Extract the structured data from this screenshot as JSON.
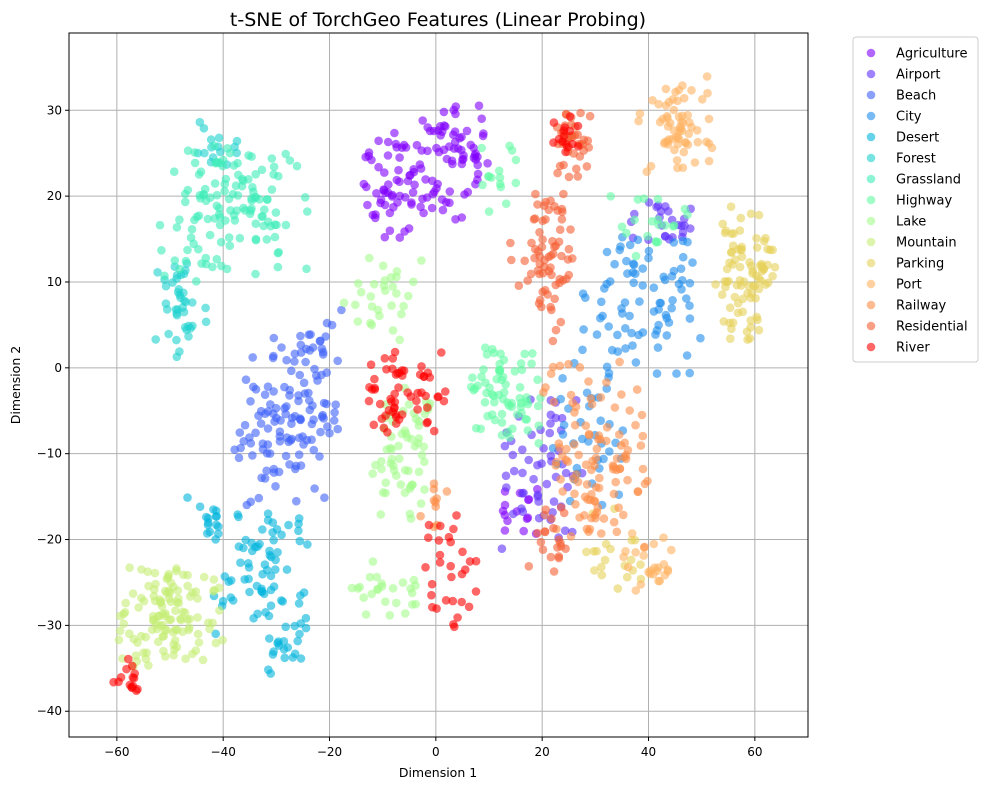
{
  "chart_data": {
    "type": "scatter",
    "title": "t-SNE of TorchGeo Features (Linear Probing)",
    "xlabel": "Dimension 1",
    "ylabel": "Dimension 2",
    "xlim": [
      -69,
      70
    ],
    "ylim": [
      -43,
      39
    ],
    "xticks": [
      -60,
      -40,
      -20,
      0,
      20,
      40,
      60
    ],
    "yticks": [
      -40,
      -30,
      -20,
      -10,
      0,
      10,
      20,
      30
    ],
    "xtick_labels": [
      "−60",
      "−40",
      "−20",
      "0",
      "20",
      "40",
      "60"
    ],
    "ytick_labels": [
      "−40",
      "−30",
      "−20",
      "−10",
      "0",
      "10",
      "20",
      "30"
    ],
    "grid": true,
    "legend_position": "outside-top-right",
    "marker_alpha": 0.6,
    "series": [
      {
        "name": "Agriculture",
        "color": "#8000ff",
        "clusters": [
          {
            "cx": -6,
            "cy": 22,
            "rx": 8,
            "ry": 7,
            "n": 75
          },
          {
            "cx": 4,
            "cy": 24,
            "rx": 6,
            "ry": 7,
            "n": 55
          },
          {
            "cx": 16,
            "cy": -17,
            "rx": 5,
            "ry": 4,
            "n": 15
          }
        ]
      },
      {
        "name": "Airport",
        "color": "#5f30fe",
        "clusters": [
          {
            "cx": 20,
            "cy": -12,
            "rx": 8,
            "ry": 10,
            "n": 55
          },
          {
            "cx": 42,
            "cy": 17,
            "rx": 10,
            "ry": 4,
            "n": 25
          }
        ]
      },
      {
        "name": "Beach",
        "color": "#3e60f8",
        "clusters": [
          {
            "cx": -28,
            "cy": -6,
            "rx": 10,
            "ry": 10,
            "n": 120
          },
          {
            "cx": -21,
            "cy": 4,
            "rx": 4,
            "ry": 4,
            "n": 15
          }
        ]
      },
      {
        "name": "City",
        "color": "#1e8ceb",
        "clusters": [
          {
            "cx": 38,
            "cy": 7,
            "rx": 12,
            "ry": 9,
            "n": 85
          },
          {
            "cx": 30,
            "cy": -8,
            "rx": 8,
            "ry": 8,
            "n": 35
          }
        ]
      },
      {
        "name": "Desert",
        "color": "#00b4dc",
        "clusters": [
          {
            "cx": -33,
            "cy": -24,
            "rx": 9,
            "ry": 8,
            "n": 70
          },
          {
            "cx": -29,
            "cy": -33,
            "rx": 4,
            "ry": 4,
            "n": 20
          },
          {
            "cx": -43,
            "cy": -17,
            "rx": 4,
            "ry": 3,
            "n": 15
          }
        ]
      },
      {
        "name": "Forest",
        "color": "#1ed2ce",
        "clusters": [
          {
            "cx": -48,
            "cy": 7,
            "rx": 5,
            "ry": 7,
            "n": 40
          },
          {
            "cx": -40,
            "cy": 26,
            "rx": 5,
            "ry": 3,
            "n": 15
          }
        ]
      },
      {
        "name": "Grassland",
        "color": "#3eecb9",
        "clusters": [
          {
            "cx": -38,
            "cy": 18,
            "rx": 14,
            "ry": 8,
            "n": 130
          }
        ]
      },
      {
        "name": "Highway",
        "color": "#61fba4",
        "clusters": [
          {
            "cx": 13,
            "cy": -3,
            "rx": 7,
            "ry": 6,
            "n": 70
          },
          {
            "cx": 12,
            "cy": 22,
            "rx": 4,
            "ry": 4,
            "n": 15
          },
          {
            "cx": 40,
            "cy": 17,
            "rx": 8,
            "ry": 5,
            "n": 20
          }
        ]
      },
      {
        "name": "Lake",
        "color": "#a4fb8c",
        "clusters": [
          {
            "cx": -6,
            "cy": -10,
            "rx": 7,
            "ry": 8,
            "n": 60
          },
          {
            "cx": -10,
            "cy": -26,
            "rx": 7,
            "ry": 4,
            "n": 25
          },
          {
            "cx": -10,
            "cy": 8,
            "rx": 8,
            "ry": 5,
            "n": 30
          }
        ]
      },
      {
        "name": "Mountain",
        "color": "#c4ec73",
        "clusters": [
          {
            "cx": -50,
            "cy": -29,
            "rx": 10,
            "ry": 6,
            "n": 120
          }
        ]
      },
      {
        "name": "Parking",
        "color": "#e6d158",
        "clusters": [
          {
            "cx": 58,
            "cy": 11,
            "rx": 6,
            "ry": 8,
            "n": 85
          },
          {
            "cx": 33,
            "cy": -21,
            "rx": 6,
            "ry": 5,
            "n": 20
          }
        ]
      },
      {
        "name": "Port",
        "color": "#ffb360",
        "clusters": [
          {
            "cx": 45,
            "cy": 28,
            "rx": 7,
            "ry": 6,
            "n": 65
          },
          {
            "cx": 40,
            "cy": -23,
            "rx": 6,
            "ry": 4,
            "n": 25
          }
        ]
      },
      {
        "name": "Railway",
        "color": "#fe8c46",
        "clusters": [
          {
            "cx": 30,
            "cy": -10,
            "rx": 10,
            "ry": 11,
            "n": 110
          },
          {
            "cx": 0,
            "cy": -16,
            "rx": 3,
            "ry": 3,
            "n": 10
          }
        ]
      },
      {
        "name": "Residential",
        "color": "#f55f33",
        "clusters": [
          {
            "cx": 20,
            "cy": 12,
            "rx": 6,
            "ry": 9,
            "n": 70
          },
          {
            "cx": 26,
            "cy": 26,
            "rx": 4,
            "ry": 4,
            "n": 40
          },
          {
            "cx": 22,
            "cy": -20,
            "rx": 5,
            "ry": 4,
            "n": 20
          }
        ]
      },
      {
        "name": "River",
        "color": "#ff0000",
        "clusters": [
          {
            "cx": -6,
            "cy": -3,
            "rx": 8,
            "ry": 5,
            "n": 60
          },
          {
            "cx": 2,
            "cy": -24,
            "rx": 6,
            "ry": 7,
            "n": 30
          },
          {
            "cx": -58,
            "cy": -36,
            "rx": 3,
            "ry": 3,
            "n": 15
          },
          {
            "cx": 25,
            "cy": 27,
            "rx": 3,
            "ry": 3,
            "n": 15
          }
        ]
      }
    ]
  }
}
